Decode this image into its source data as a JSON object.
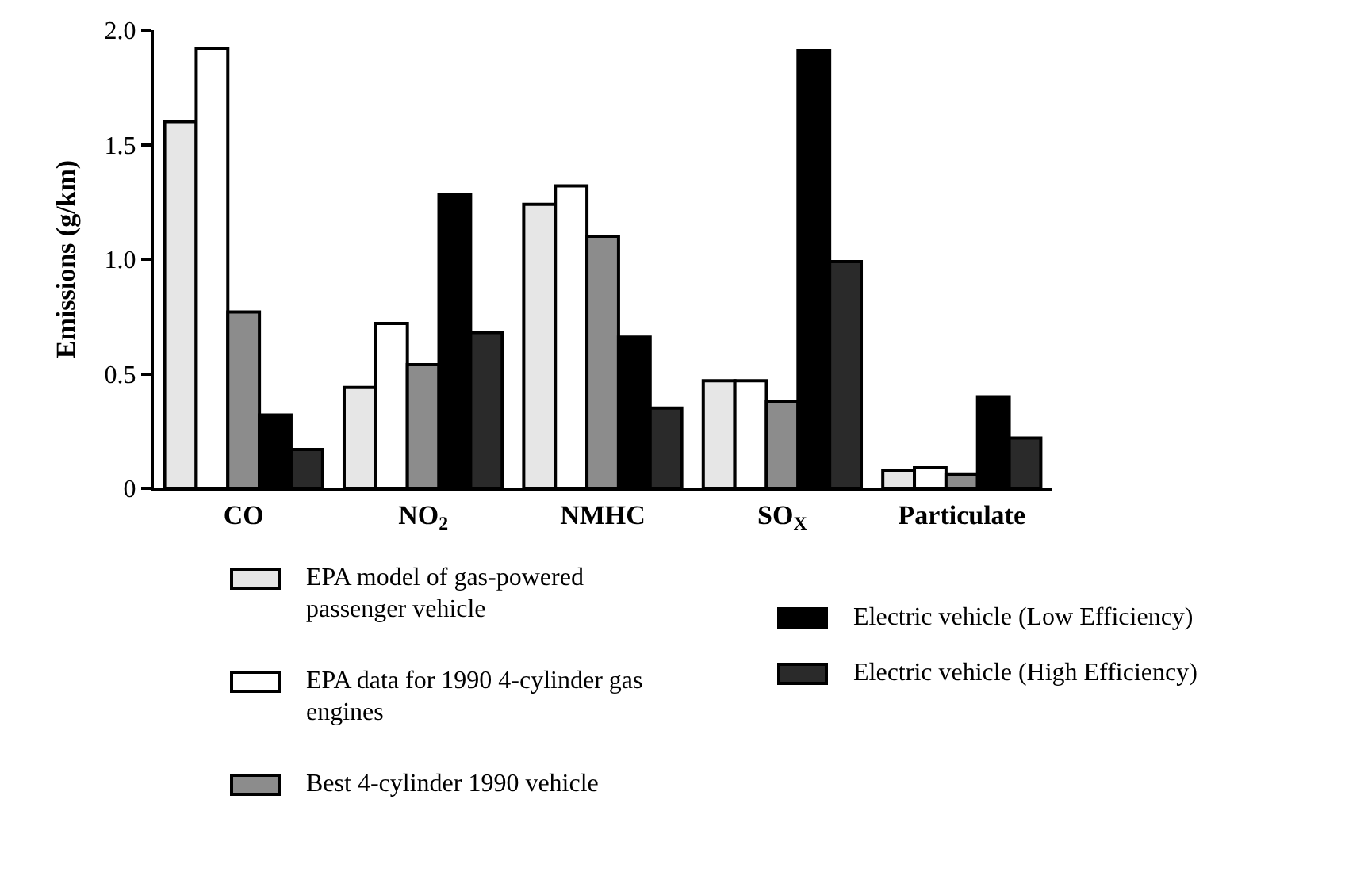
{
  "chart_data": {
    "type": "bar",
    "ylabel": "Emissions (g/km)",
    "categories": [
      "CO",
      "NO$_{2}$",
      "NMHC",
      "SO$_{X}$",
      "Particulate"
    ],
    "ylim": [
      0,
      2
    ],
    "yticks": [
      0,
      0.5,
      {
        "value": 1,
        "label": "1.0"
      },
      1.5,
      {
        "value": 2,
        "label": "2.0"
      }
    ],
    "grid": false,
    "legend": "bottom",
    "series": [
      {
        "name": "EPA model of gas-powered passenger vehicle",
        "color": "#e6e6e6",
        "values": [
          1.6,
          0.44,
          1.24,
          0.47,
          0.08
        ]
      },
      {
        "name": "EPA data for 1990 4-cylinder gas engines",
        "color": "#ffffff",
        "values": [
          1.92,
          0.72,
          1.32,
          0.47,
          0.09
        ]
      },
      {
        "name": "Best 4-cylinder 1990 vehicle",
        "color": "#8c8c8c",
        "values": [
          0.77,
          0.54,
          1.1,
          0.38,
          0.06
        ]
      },
      {
        "name": "Electric vehicle (Low Efficiency)",
        "color": "#000000",
        "values": [
          0.32,
          1.28,
          0.66,
          1.91,
          0.4
        ]
      },
      {
        "name": "Electric vehicle (High Efficiency)",
        "color": "#2a2a2a",
        "values": [
          0.17,
          0.68,
          0.35,
          0.99,
          0.22
        ]
      }
    ]
  }
}
